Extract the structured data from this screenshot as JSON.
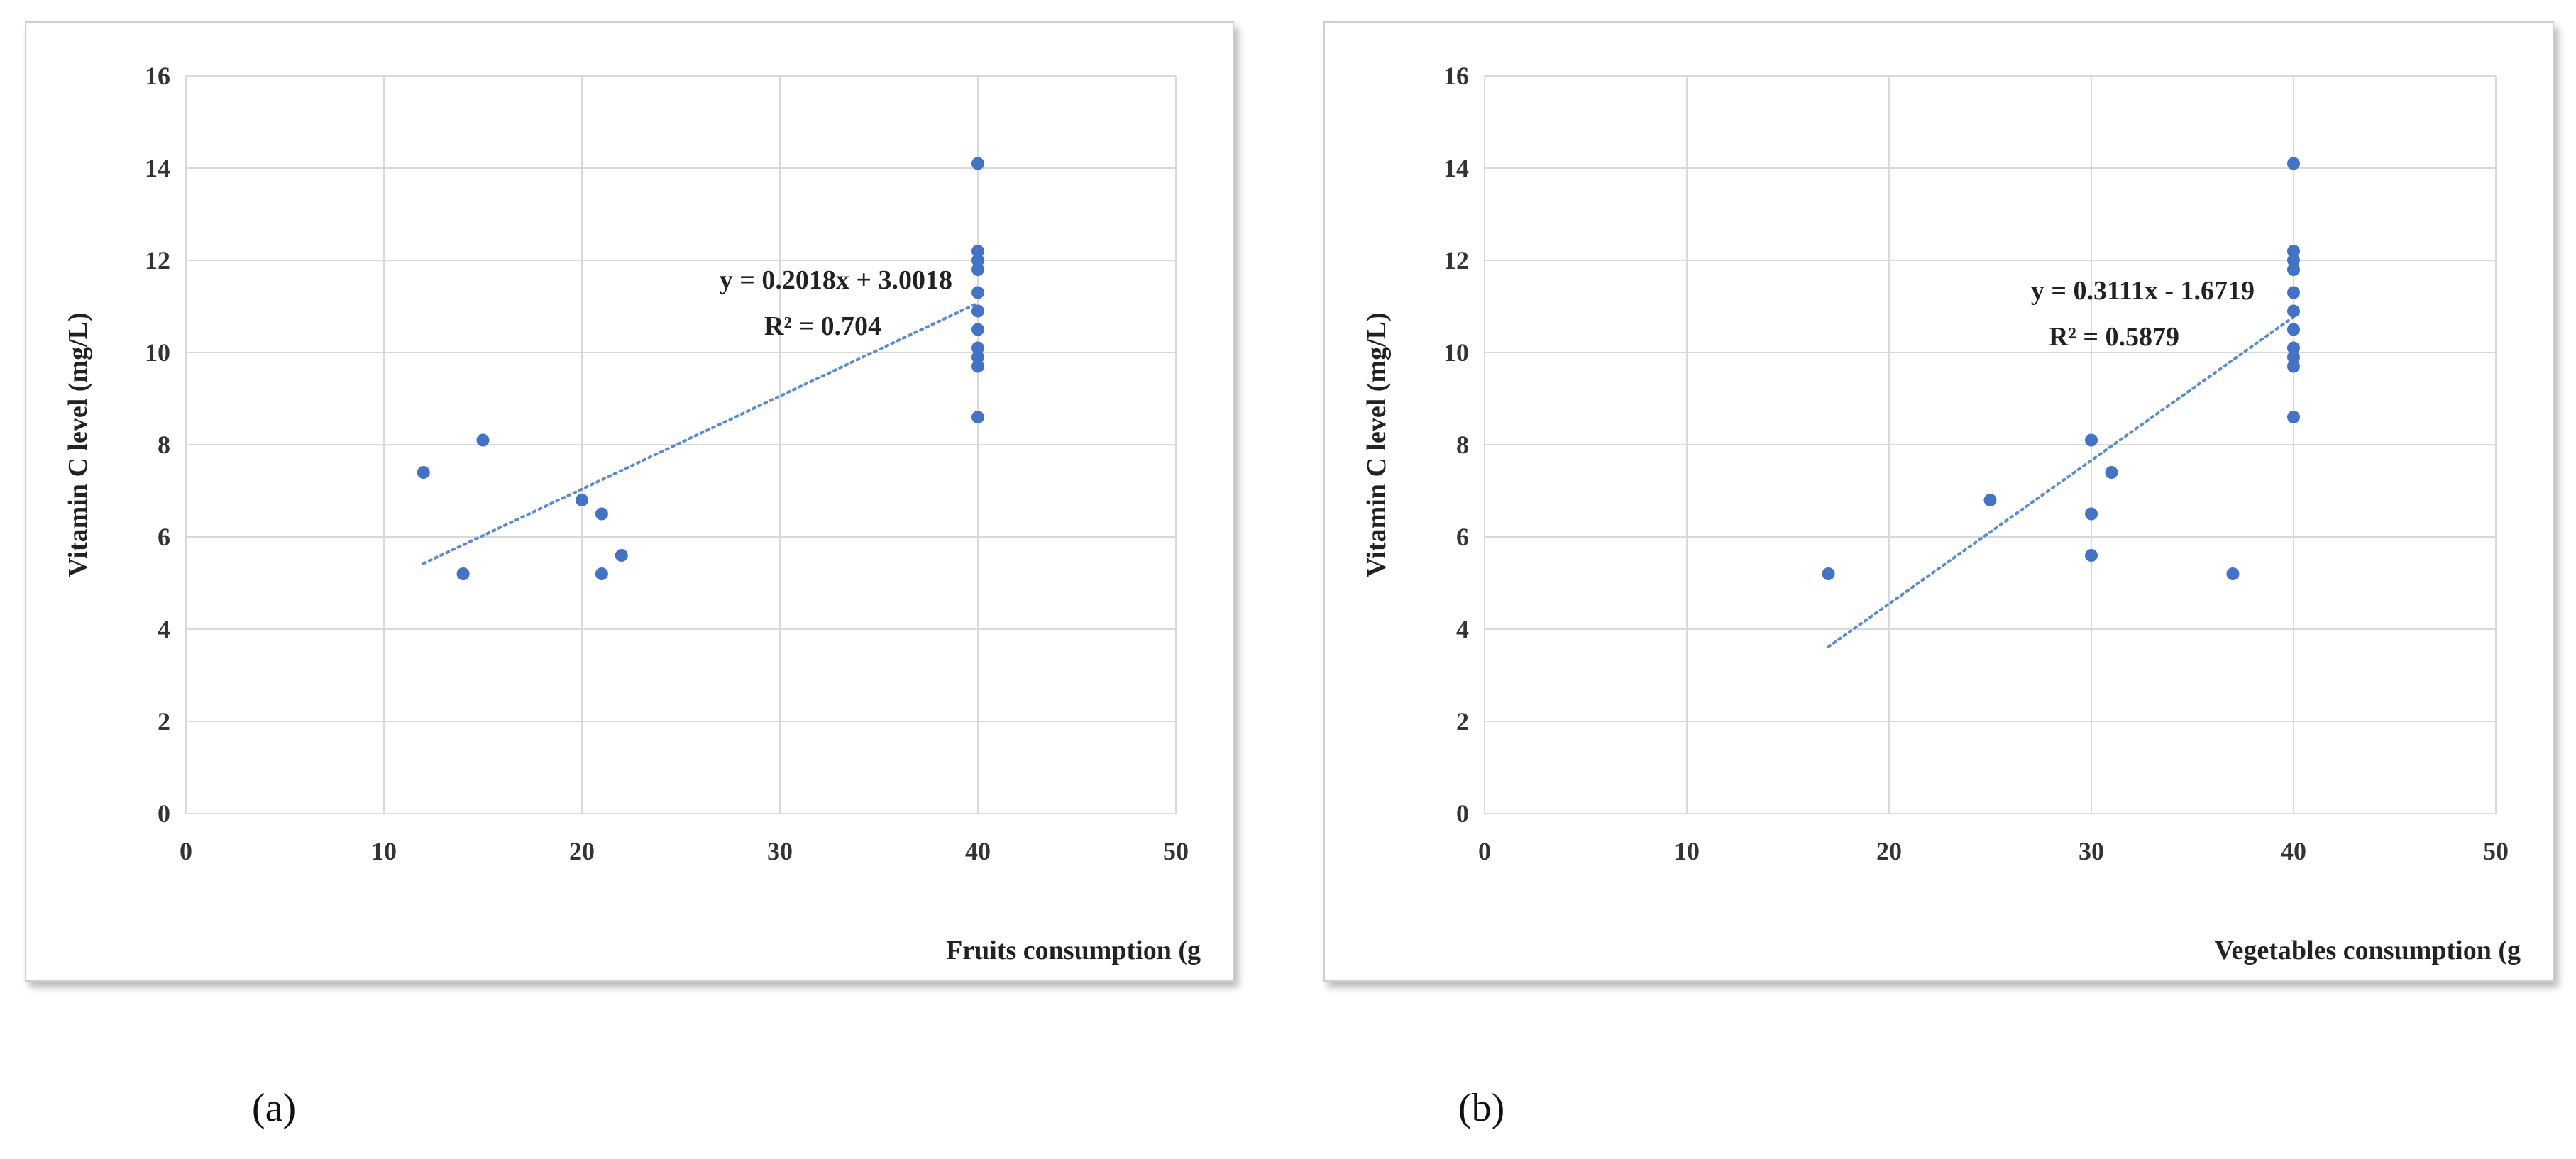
{
  "colors": {
    "point": "#4472c4",
    "trend": "#5b8bd0",
    "grid": "#d9d9d9"
  },
  "chart_data": [
    {
      "type": "scatter",
      "caption": "(a)",
      "ylabel": "Vitamin C level (mg/L)",
      "xlabel": "Fruits consumption (g",
      "xlim": [
        0,
        50
      ],
      "ylim": [
        0,
        16
      ],
      "xticks": [
        "0",
        "10",
        "20",
        "30",
        "40",
        "50"
      ],
      "yticks": [
        "0",
        "2",
        "4",
        "6",
        "8",
        "10",
        "12",
        "14",
        "16"
      ],
      "grid": true,
      "points": [
        [
          12,
          7.4
        ],
        [
          14,
          5.2
        ],
        [
          15,
          8.1
        ],
        [
          20,
          6.8
        ],
        [
          21,
          6.5
        ],
        [
          21,
          5.2
        ],
        [
          22,
          5.6
        ],
        [
          40,
          14.1
        ],
        [
          40,
          12.2
        ],
        [
          40,
          12.0
        ],
        [
          40,
          11.8
        ],
        [
          40,
          11.3
        ],
        [
          40,
          10.9
        ],
        [
          40,
          10.5
        ],
        [
          40,
          10.1
        ],
        [
          40,
          9.9
        ],
        [
          40,
          9.7
        ],
        [
          40,
          8.6
        ]
      ],
      "trendline": {
        "slope": 0.2018,
        "intercept": 3.0018,
        "x_range": [
          12,
          40
        ]
      },
      "equation": "y = 0.2018x + 3.0018",
      "r2": "R² = 0.704"
    },
    {
      "type": "scatter",
      "caption": "(b)",
      "ylabel": "Vitamin C level (mg/L)",
      "xlabel": "Vegetables consumption (g",
      "xlim": [
        0,
        50
      ],
      "ylim": [
        0,
        16
      ],
      "xticks": [
        "0",
        "10",
        "20",
        "30",
        "40",
        "50"
      ],
      "yticks": [
        "0",
        "2",
        "4",
        "6",
        "8",
        "10",
        "12",
        "14",
        "16"
      ],
      "grid": true,
      "points": [
        [
          17,
          5.2
        ],
        [
          25,
          6.8
        ],
        [
          30,
          8.1
        ],
        [
          30,
          6.5
        ],
        [
          30,
          5.6
        ],
        [
          31,
          7.4
        ],
        [
          37,
          5.2
        ],
        [
          40,
          14.1
        ],
        [
          40,
          12.2
        ],
        [
          40,
          12.0
        ],
        [
          40,
          11.8
        ],
        [
          40,
          11.3
        ],
        [
          40,
          10.9
        ],
        [
          40,
          10.5
        ],
        [
          40,
          10.1
        ],
        [
          40,
          9.9
        ],
        [
          40,
          9.7
        ],
        [
          40,
          8.6
        ]
      ],
      "trendline": {
        "slope": 0.3111,
        "intercept": -1.6719,
        "x_range": [
          17,
          40
        ]
      },
      "equation": "y = 0.3111x - 1.6719",
      "r2": "R² = 0.5879"
    }
  ]
}
